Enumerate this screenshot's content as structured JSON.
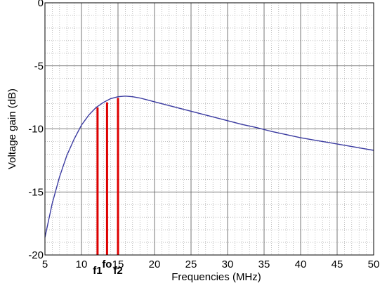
{
  "chart_data": {
    "type": "line",
    "title": "",
    "xlabel": "Frequencies (MHz)",
    "ylabel": "Voltage gain (dB)",
    "xlim": [
      5,
      50
    ],
    "ylim": [
      -20,
      0
    ],
    "x_ticks": [
      5,
      10,
      15,
      20,
      25,
      30,
      35,
      40,
      45,
      50
    ],
    "y_ticks": [
      0,
      -5,
      -10,
      -15,
      -20
    ],
    "x_tick_labels": [
      "5",
      "10",
      "15",
      "20",
      "25",
      "30",
      "35",
      "40",
      "45",
      "50"
    ],
    "y_tick_labels": [
      "0",
      "-5",
      "-10",
      "-15",
      "-20"
    ],
    "grid": {
      "major": true,
      "minor": true
    },
    "series": [
      {
        "x": [
          5,
          6,
          7,
          8,
          9,
          10,
          11,
          12,
          13,
          14,
          15,
          16,
          17,
          18,
          19,
          20,
          22,
          24,
          26,
          28,
          30,
          32,
          34,
          36,
          38,
          40,
          42,
          44,
          46,
          48,
          50
        ],
        "values": [
          -18.6,
          -15.9,
          -13.8,
          -12.1,
          -10.8,
          -9.7,
          -8.9,
          -8.3,
          -7.9,
          -7.6,
          -7.45,
          -7.4,
          -7.45,
          -7.55,
          -7.7,
          -7.85,
          -8.15,
          -8.45,
          -8.75,
          -9.05,
          -9.35,
          -9.65,
          -9.9,
          -10.2,
          -10.45,
          -10.7,
          -10.9,
          -11.1,
          -11.3,
          -11.5,
          -11.7
        ]
      }
    ],
    "markers": [
      {
        "label": "f1",
        "x": 12.2,
        "y": -8.3
      },
      {
        "label": "fo",
        "x": 13.5,
        "y": -7.9
      },
      {
        "label": "f2",
        "x": 15.0,
        "y": -7.55
      }
    ],
    "colors": {
      "line": "#3a3aa0",
      "marker": "#dd0000",
      "grid_major": "#555555",
      "grid_minor": "#9a9a9a"
    }
  }
}
